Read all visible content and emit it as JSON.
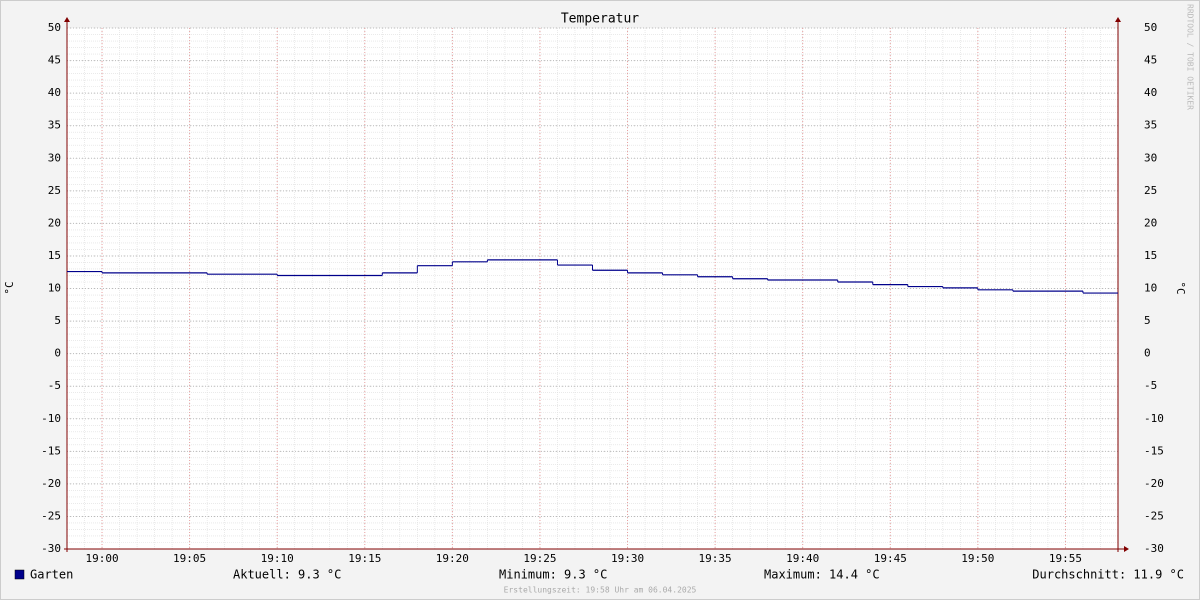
{
  "chart_data": {
    "type": "line",
    "title": "Temperatur",
    "y_label": "°C",
    "x": [
      1138,
      1140,
      1146,
      1150,
      1156,
      1158,
      1160,
      1162,
      1166,
      1168,
      1170,
      1172,
      1174,
      1176,
      1178,
      1182,
      1184,
      1186,
      1188,
      1190,
      1192,
      1196
    ],
    "series": [
      {
        "name": "Garten",
        "color": "#00008b",
        "values": [
          12.6,
          12.4,
          12.2,
          12.0,
          12.4,
          13.5,
          14.1,
          14.4,
          13.6,
          12.8,
          12.4,
          12.1,
          11.8,
          11.5,
          11.3,
          11.0,
          10.6,
          10.3,
          10.1,
          9.8,
          9.6,
          9.3
        ]
      }
    ],
    "xlim": [
      1138,
      1198
    ],
    "xticks": [
      {
        "value": 1140,
        "label": "19:00"
      },
      {
        "value": 1145,
        "label": "19:05"
      },
      {
        "value": 1150,
        "label": "19:10"
      },
      {
        "value": 1155,
        "label": "19:15"
      },
      {
        "value": 1160,
        "label": "19:20"
      },
      {
        "value": 1165,
        "label": "19:25"
      },
      {
        "value": 1170,
        "label": "19:30"
      },
      {
        "value": 1175,
        "label": "19:35"
      },
      {
        "value": 1180,
        "label": "19:40"
      },
      {
        "value": 1185,
        "label": "19:45"
      },
      {
        "value": 1190,
        "label": "19:50"
      },
      {
        "value": 1195,
        "label": "19:55"
      }
    ],
    "ylim": [
      -30,
      50
    ],
    "yticks": [
      -30,
      -25,
      -20,
      -15,
      -10,
      -5,
      0,
      5,
      10,
      15,
      20,
      25,
      30,
      35,
      40,
      45,
      50
    ],
    "grid": true,
    "stats": [
      "Aktuell: 9.3 °C",
      "Minimum: 9.3 °C",
      "Maximum: 14.4 °C",
      "Durchschnitt: 11.9 °C"
    ],
    "footer": "Erstellungszeit: 19:58 Uhr am 06.04.2025",
    "watermark": "RRDTOOL / TOBI OETIKER"
  }
}
